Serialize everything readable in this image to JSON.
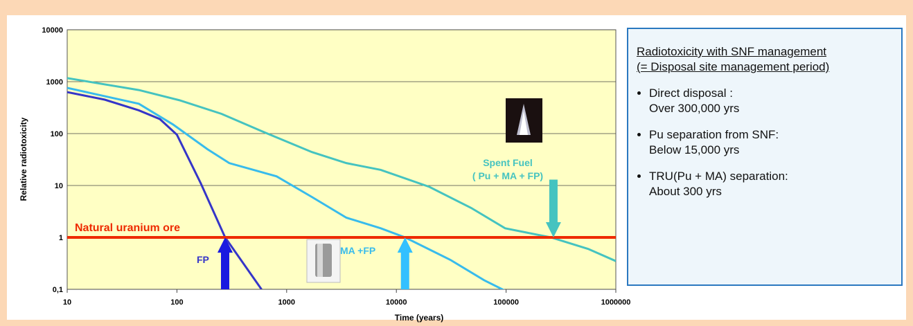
{
  "chart_data": {
    "type": "line",
    "xlabel": "Time (years)",
    "ylabel": "Relative radiotoxicity",
    "log_x": true,
    "log_y": true,
    "grid": true,
    "xlim": [
      10,
      1000000
    ],
    "ylim": [
      0.1,
      10000
    ],
    "xticks": [
      10,
      100,
      1000,
      10000,
      100000,
      1000000
    ],
    "yticks": [
      {
        "value": 0.1,
        "label": "0,1"
      },
      1,
      10,
      100,
      1000,
      10000
    ],
    "series": [
      {
        "name": "FP",
        "color": "#3535c8",
        "x": [
          10,
          22,
          45,
          70,
          100,
          165,
          275,
          590
        ],
        "values": [
          630,
          450,
          280,
          190,
          95,
          11,
          1,
          0.1
        ]
      },
      {
        "name": "MA +FP",
        "color": "#38bbec",
        "x": [
          10,
          45,
          92,
          190,
          300,
          810,
          1700,
          3500,
          7200,
          12000,
          31000,
          63000,
          98000
        ],
        "values": [
          760,
          375,
          150,
          50,
          27,
          15,
          6,
          2.4,
          1.5,
          1,
          0.37,
          0.15,
          0.094
        ]
      },
      {
        "name": "Spent Fuel",
        "color": "#45c3c0",
        "x": [
          10,
          45,
          105,
          255,
          600,
          1700,
          3500,
          7200,
          20000,
          48000,
          98000,
          256000,
          560000,
          1000000
        ],
        "values": [
          1170,
          690,
          440,
          240,
          110,
          44,
          27,
          20,
          9.4,
          3.7,
          1.5,
          1,
          0.6,
          0.35
        ]
      }
    ],
    "reference": {
      "name": "Natural uranium ore",
      "value": 1,
      "color": "#ee2a00"
    },
    "arrows": [
      {
        "x": 275,
        "from": 0.1,
        "to": 1,
        "color": "#1a1ae0"
      },
      {
        "x": 12000,
        "from": 0.1,
        "to": 1,
        "color": "#33c0ff"
      },
      {
        "x": 270000,
        "from": 13,
        "to": 1,
        "color": "#45c3c0"
      }
    ],
    "annotations": [
      "FP",
      "MA +FP",
      "Spent Fuel",
      "( Pu + MA + FP)"
    ]
  },
  "panel": {
    "heading": [
      "Radiotoxicity with SNF management",
      "(= Disposal site management period)"
    ],
    "items": [
      [
        "Direct disposal :",
        "Over 300,000 yrs"
      ],
      [
        "Pu separation from SNF:",
        "Below 15,000 yrs"
      ],
      [
        "TRU(Pu + MA) separation:",
        "About 300 yrs"
      ]
    ]
  }
}
